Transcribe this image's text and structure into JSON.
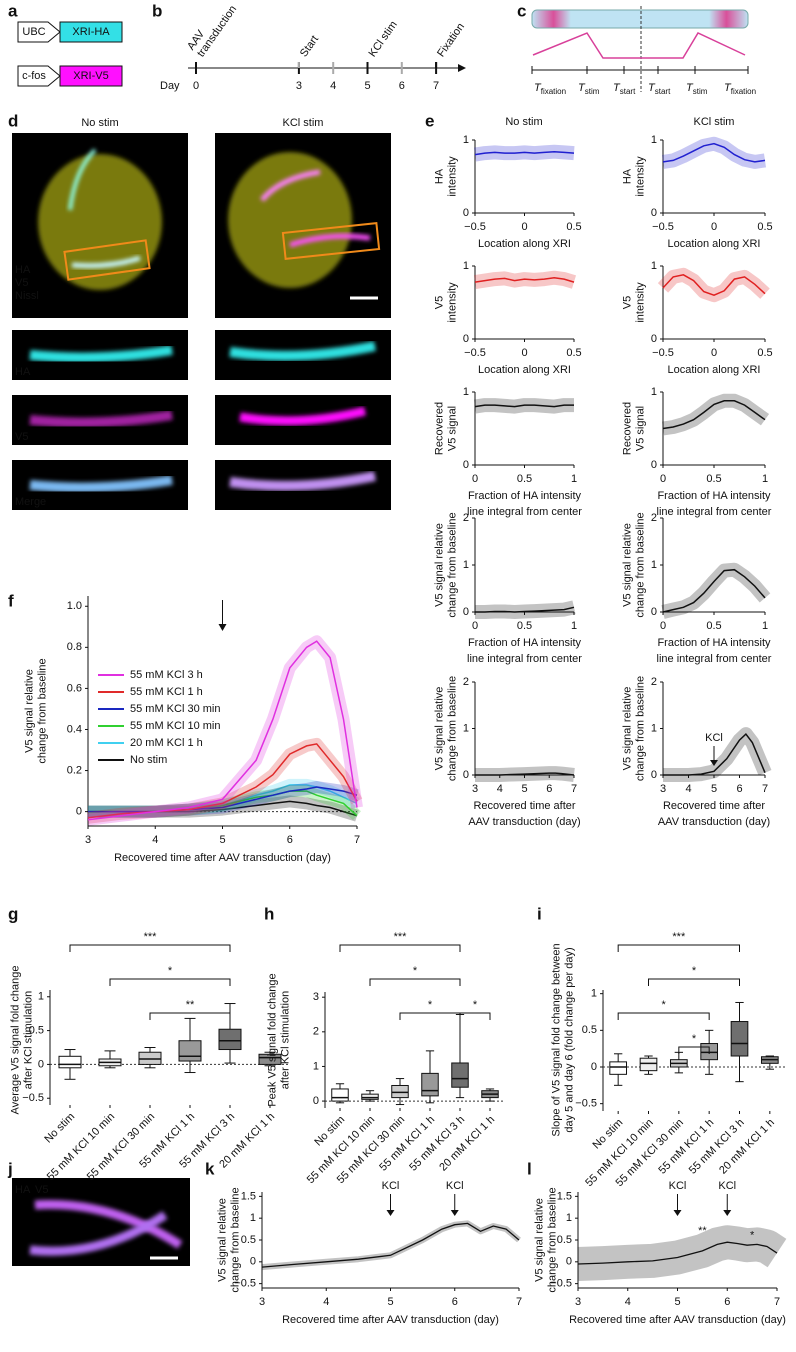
{
  "panel_labels": [
    "a",
    "b",
    "c",
    "d",
    "e",
    "f",
    "g",
    "h",
    "i",
    "j",
    "k",
    "l"
  ],
  "a": {
    "constructs": [
      {
        "promoter": "UBC",
        "gene": "XRI-HA",
        "color": "#33e0e6"
      },
      {
        "promoter": "c-fos",
        "gene": "XRI-V5",
        "color": "#ff10ff"
      }
    ]
  },
  "b": {
    "axis_label": "Day",
    "ticks": [
      0,
      3,
      4,
      5,
      6,
      7
    ],
    "events": [
      {
        "lines": [
          "AAV",
          "transduction"
        ],
        "day": 0
      },
      {
        "lines": [
          "Start"
        ],
        "day": 3,
        "color": "#aaaaaa"
      },
      {
        "lines": [
          "KCl stim"
        ],
        "day": 5
      },
      {
        "lines": [
          "Fixation"
        ],
        "day": 7
      }
    ]
  },
  "c": {
    "labels": [
      {
        "base": "T",
        "sub": "fixation"
      },
      {
        "base": "T",
        "sub": "stim"
      },
      {
        "base": "T",
        "sub": "start"
      },
      {
        "base": "T",
        "sub": "start"
      },
      {
        "base": "T",
        "sub": "stim"
      },
      {
        "base": "T",
        "sub": "fixation"
      }
    ]
  },
  "d": {
    "columns": [
      "No stim",
      "KCl stim"
    ],
    "overlay": [
      "HA",
      "V5",
      "Nissl"
    ],
    "strips": [
      "HA",
      "V5",
      "Merge"
    ]
  },
  "e": {
    "columns": [
      "No stim",
      "KCl stim"
    ],
    "rows": [
      {
        "ylabel": [
          "HA",
          "intensity"
        ],
        "color": "#2020d0",
        "xlabel": [
          "Location along XRI"
        ],
        "xlim": [
          -0.5,
          0.5
        ],
        "ylim": [
          0,
          1
        ],
        "xticks": [
          {
            "value": -0.5,
            "label": "−0.5"
          },
          0,
          0.5
        ],
        "yticks": [
          0,
          1
        ],
        "x": [
          -0.5,
          -0.4,
          -0.3,
          -0.2,
          -0.1,
          0,
          0.1,
          0.2,
          0.3,
          0.4,
          0.5
        ],
        "no_stim": [
          0.8,
          0.82,
          0.83,
          0.82,
          0.82,
          0.83,
          0.82,
          0.83,
          0.84,
          0.83,
          0.82
        ],
        "kcl": [
          0.7,
          0.72,
          0.78,
          0.85,
          0.92,
          0.95,
          0.9,
          0.8,
          0.73,
          0.7,
          0.72
        ]
      },
      {
        "ylabel": [
          "V5",
          "intensity"
        ],
        "color": "#e02020",
        "xlabel": [
          "Location along XRI"
        ],
        "xlim": [
          -0.5,
          0.5
        ],
        "ylim": [
          0,
          1
        ],
        "xticks": [
          {
            "value": -0.5,
            "label": "−0.5"
          },
          0,
          0.5
        ],
        "yticks": [
          0,
          1
        ],
        "x": [
          -0.5,
          -0.4,
          -0.3,
          -0.2,
          -0.1,
          0,
          0.1,
          0.2,
          0.3,
          0.4,
          0.5
        ],
        "no_stim": [
          0.78,
          0.8,
          0.82,
          0.83,
          0.8,
          0.82,
          0.81,
          0.82,
          0.84,
          0.82,
          0.78
        ],
        "kcl": [
          0.7,
          0.85,
          0.88,
          0.8,
          0.65,
          0.6,
          0.66,
          0.82,
          0.85,
          0.75,
          0.62
        ]
      },
      {
        "ylabel": [
          "Recovered",
          "V5 signal"
        ],
        "color": "#222222",
        "xlabel": [
          "Fraction of HA intensity",
          "line integral from center"
        ],
        "xlim": [
          0,
          1
        ],
        "ylim": [
          0,
          1
        ],
        "xticks": [
          0,
          0.5,
          1
        ],
        "yticks": [
          0,
          1
        ],
        "x": [
          0,
          0.1,
          0.2,
          0.3,
          0.4,
          0.5,
          0.6,
          0.7,
          0.8,
          0.9,
          1
        ],
        "no_stim": [
          0.8,
          0.82,
          0.82,
          0.81,
          0.8,
          0.82,
          0.82,
          0.81,
          0.8,
          0.82,
          0.82
        ],
        "kcl": [
          0.5,
          0.52,
          0.56,
          0.62,
          0.72,
          0.83,
          0.88,
          0.88,
          0.82,
          0.72,
          0.62
        ]
      },
      {
        "ylabel": [
          "V5 signal relative",
          "change from baseline"
        ],
        "color": "#222222",
        "xlabel": [
          "Fraction of HA intensity",
          "line integral from center"
        ],
        "xlim": [
          0,
          1
        ],
        "ylim": [
          0,
          2
        ],
        "xticks": [
          0,
          0.5,
          1
        ],
        "yticks": [
          0,
          1,
          2
        ],
        "x": [
          0,
          0.1,
          0.2,
          0.3,
          0.4,
          0.5,
          0.6,
          0.7,
          0.8,
          0.9,
          1
        ],
        "no_stim": [
          0,
          0,
          0.01,
          0.01,
          0,
          0.01,
          0.02,
          0.03,
          0.04,
          0.05,
          0.1
        ],
        "kcl": [
          0,
          0.05,
          0.1,
          0.2,
          0.4,
          0.65,
          0.88,
          0.9,
          0.75,
          0.55,
          0.3
        ]
      },
      {
        "ylabel": [
          "V5 signal relative",
          "change from baseline"
        ],
        "color": "#222222",
        "xlabel": [
          "Recovered time after",
          "AAV transduction (day)"
        ],
        "xlim": [
          3,
          7
        ],
        "ylim": [
          0,
          2
        ],
        "xticks": [
          3,
          4,
          5,
          6,
          7
        ],
        "yticks": [
          0,
          1,
          2
        ],
        "x": [
          3,
          3.5,
          4,
          4.5,
          5,
          5.5,
          6,
          6.25,
          6.5,
          7
        ],
        "no_stim": [
          0,
          0,
          0,
          0.01,
          0.02,
          0.03,
          0.04,
          0.04,
          0.03,
          0
        ],
        "kcl": [
          0,
          0,
          0,
          0.02,
          0.08,
          0.35,
          0.75,
          0.88,
          0.7,
          0.05
        ],
        "kcl_arrow": {
          "text": "KCl",
          "x": 5
        }
      }
    ]
  },
  "f": {
    "ylabel": [
      "V5 signal relative",
      "change from baseline"
    ],
    "xlabel": "Recovered time after AAV transduction (day)",
    "xlim": [
      3,
      7
    ],
    "ylim": [
      -0.07,
      1.05
    ],
    "xticks": [
      3,
      4,
      5,
      6,
      7
    ],
    "yticks": [
      0,
      0.2,
      0.4,
      0.6,
      0.8,
      {
        "value": 1,
        "label": "1.0"
      }
    ],
    "arrow_x": 5,
    "x": [
      3,
      3.5,
      4,
      4.5,
      5,
      5.5,
      5.75,
      6,
      6.25,
      6.4,
      6.6,
      6.8,
      7
    ],
    "series": [
      {
        "name": "55 mM KCl 3 h",
        "color": "#e030e0",
        "values": [
          -0.04,
          -0.02,
          0,
          0.02,
          0.06,
          0.25,
          0.45,
          0.7,
          0.8,
          0.83,
          0.75,
          0.45,
          0.02
        ]
      },
      {
        "name": "55 mM KCl 1 h",
        "color": "#e02a2a",
        "values": [
          -0.03,
          -0.01,
          0,
          0.01,
          0.04,
          0.12,
          0.18,
          0.28,
          0.32,
          0.33,
          0.25,
          0.17,
          0.05
        ]
      },
      {
        "name": "55 mM KCl 30 min",
        "color": "#1a28c0",
        "values": [
          0,
          0,
          0,
          0.01,
          0.02,
          0.06,
          0.08,
          0.1,
          0.11,
          0.12,
          0.11,
          0.1,
          0.08
        ]
      },
      {
        "name": "55 mM KCl 10 min",
        "color": "#30d030",
        "values": [
          0,
          0,
          0,
          0.01,
          0.03,
          0.07,
          0.08,
          0.1,
          0.1,
          0.08,
          0.06,
          0.04,
          -0.02
        ]
      },
      {
        "name": "20 mM KCl 1 h",
        "color": "#40d0f0",
        "values": [
          0,
          0,
          0,
          0.01,
          0.03,
          0.08,
          0.1,
          0.13,
          0.13,
          0.12,
          0.1,
          0.07,
          0.04
        ]
      },
      {
        "name": "No stim",
        "color": "#111111",
        "values": [
          0,
          0,
          0,
          0,
          0.01,
          0.03,
          0.04,
          0.05,
          0.04,
          0.03,
          0.02,
          0,
          -0.02
        ]
      }
    ]
  },
  "g": {
    "ylabel": [
      "Average V5 signal fold change",
      "after KCl stimulation"
    ],
    "categories": [
      "No stim",
      "55 mM KCl 10 min",
      "55 mM KCl 30 min",
      "55 mM KCl 1 h",
      "55 mM KCl 3 h",
      "20 mM KCl 1 h"
    ],
    "ylim": [
      -0.6,
      1.1
    ],
    "yticks": [
      {
        "value": -0.5,
        "label": "−0.5"
      },
      0,
      0.5,
      1
    ],
    "boxes": [
      {
        "min": -0.22,
        "q1": -0.05,
        "median": 0,
        "q3": 0.12,
        "max": 0.22
      },
      {
        "min": -0.05,
        "q1": -0.02,
        "median": 0.03,
        "q3": 0.08,
        "max": 0.2
      },
      {
        "min": -0.05,
        "q1": 0,
        "median": 0.08,
        "q3": 0.18,
        "max": 0.25
      },
      {
        "min": -0.12,
        "q1": 0.05,
        "median": 0.12,
        "q3": 0.35,
        "max": 0.68
      },
      {
        "min": 0.02,
        "q1": 0.22,
        "median": 0.35,
        "q3": 0.52,
        "max": 0.9
      },
      {
        "min": -0.02,
        "q1": 0,
        "median": 0.1,
        "q3": 0.15,
        "max": 0.18
      }
    ],
    "brackets": [
      {
        "from": 0,
        "to": 4,
        "label": "***"
      },
      {
        "from": 1,
        "to": 4,
        "label": "*"
      },
      {
        "from": 2,
        "to": 4,
        "label": "**"
      }
    ]
  },
  "h": {
    "ylabel": [
      "Peak V5 signal fold change",
      "after KCl stimulation"
    ],
    "categories": [
      "No stim",
      "55 mM KCl 10 min",
      "55 mM KCl 30 min",
      "55 mM KCl 1 h",
      "55 mM KCl 3 h",
      "20 mM KCl 1 h"
    ],
    "ylim": [
      -0.2,
      3.15
    ],
    "yticks": [
      0,
      1,
      2,
      3
    ],
    "boxes": [
      {
        "min": -0.05,
        "q1": 0,
        "median": 0.1,
        "q3": 0.35,
        "max": 0.5
      },
      {
        "min": 0,
        "q1": 0.05,
        "median": 0.1,
        "q3": 0.2,
        "max": 0.3
      },
      {
        "min": -0.1,
        "q1": 0.1,
        "median": 0.25,
        "q3": 0.45,
        "max": 0.65
      },
      {
        "min": -0.05,
        "q1": 0.15,
        "median": 0.3,
        "q3": 0.8,
        "max": 1.45
      },
      {
        "min": 0.1,
        "q1": 0.4,
        "median": 0.65,
        "q3": 1.1,
        "max": 2.5
      },
      {
        "min": 0,
        "q1": 0.1,
        "median": 0.2,
        "q3": 0.3,
        "max": 0.35
      }
    ],
    "brackets": [
      {
        "from": 0,
        "to": 4,
        "label": "***"
      },
      {
        "from": 1,
        "to": 4,
        "label": "*"
      },
      {
        "from": 2,
        "to": 4,
        "label": "*"
      },
      {
        "from": 4,
        "to": 5,
        "label": "*"
      }
    ]
  },
  "i": {
    "ylabel": [
      "Slope of V5 signal fold change between",
      "day 5 and day 6 (fold change per day)"
    ],
    "categories": [
      "No stim",
      "55 mM KCl 10 min",
      "55 mM KCl 30 min",
      "55 mM KCl 1 h",
      "55 mM KCl 3 h",
      "20 mM KCl 1 h"
    ],
    "ylim": [
      -0.6,
      1.05
    ],
    "yticks": [
      {
        "value": -0.5,
        "label": "−0.5"
      },
      0,
      0.5,
      1
    ],
    "boxes": [
      {
        "min": -0.25,
        "q1": -0.1,
        "median": 0,
        "q3": 0.07,
        "max": 0.18
      },
      {
        "min": -0.1,
        "q1": -0.05,
        "median": 0.05,
        "q3": 0.12,
        "max": 0.15
      },
      {
        "min": -0.08,
        "q1": 0,
        "median": 0.05,
        "q3": 0.1,
        "max": 0.2
      },
      {
        "min": -0.1,
        "q1": 0.1,
        "median": 0.2,
        "q3": 0.32,
        "max": 0.5
      },
      {
        "min": -0.2,
        "q1": 0.15,
        "median": 0.32,
        "q3": 0.62,
        "max": 0.88
      },
      {
        "min": -0.03,
        "q1": 0.05,
        "median": 0.1,
        "q3": 0.14,
        "max": 0.15
      }
    ],
    "brackets": [
      {
        "from": 0,
        "to": 4,
        "label": "***"
      },
      {
        "from": 1,
        "to": 4,
        "label": "*"
      },
      {
        "from": 0,
        "to": 3,
        "label": "*"
      },
      {
        "from": 2,
        "to": 3,
        "label": "*"
      }
    ]
  },
  "j": {
    "labels": [
      "HA",
      "V5"
    ]
  },
  "k": {
    "ylabel": [
      "V5 signal relative",
      "change from baseline"
    ],
    "xlabel": "Recovered time after AAV transduction (day)",
    "xlim": [
      3,
      7
    ],
    "ylim": [
      -0.6,
      1.6
    ],
    "xticks": [
      3,
      4,
      5,
      6,
      7
    ],
    "yticks": [
      {
        "value": -0.5,
        "label": "−0.5"
      },
      0,
      0.5,
      1,
      1.5
    ],
    "x": [
      3,
      3.5,
      4,
      4.5,
      5,
      5.5,
      5.8,
      6,
      6.2,
      6.4,
      6.6,
      6.8,
      7
    ],
    "values": [
      -0.12,
      -0.06,
      0,
      0.06,
      0.15,
      0.5,
      0.75,
      0.85,
      0.88,
      0.7,
      0.82,
      0.75,
      0.5
    ],
    "arrows": [
      {
        "text": "KCl",
        "x": 5
      },
      {
        "text": "KCl",
        "x": 6
      }
    ]
  },
  "l": {
    "ylabel": [
      "V5 signal relative",
      "change from baseline"
    ],
    "xlabel": "Recovered time after AAV transduction (day)",
    "xlim": [
      3,
      7
    ],
    "ylim": [
      -0.6,
      1.6
    ],
    "xticks": [
      3,
      4,
      5,
      6,
      7
    ],
    "yticks": [
      {
        "value": -0.5,
        "label": "−0.5"
      },
      0,
      0.5,
      1,
      1.5
    ],
    "x": [
      3,
      3.5,
      4,
      4.5,
      5,
      5.5,
      5.8,
      6,
      6.2,
      6.4,
      6.6,
      6.8,
      7
    ],
    "values": [
      -0.05,
      -0.03,
      0,
      0.02,
      0.1,
      0.25,
      0.4,
      0.45,
      0.42,
      0.38,
      0.4,
      0.35,
      0.2
    ],
    "arrows": [
      {
        "text": "KCl",
        "x": 5
      },
      {
        "text": "KCl",
        "x": 6
      }
    ],
    "stars": [
      {
        "text": "**",
        "x": 5.5,
        "y": 0.7
      },
      {
        "text": "*",
        "x": 6.5,
        "y": 0.6
      }
    ]
  }
}
